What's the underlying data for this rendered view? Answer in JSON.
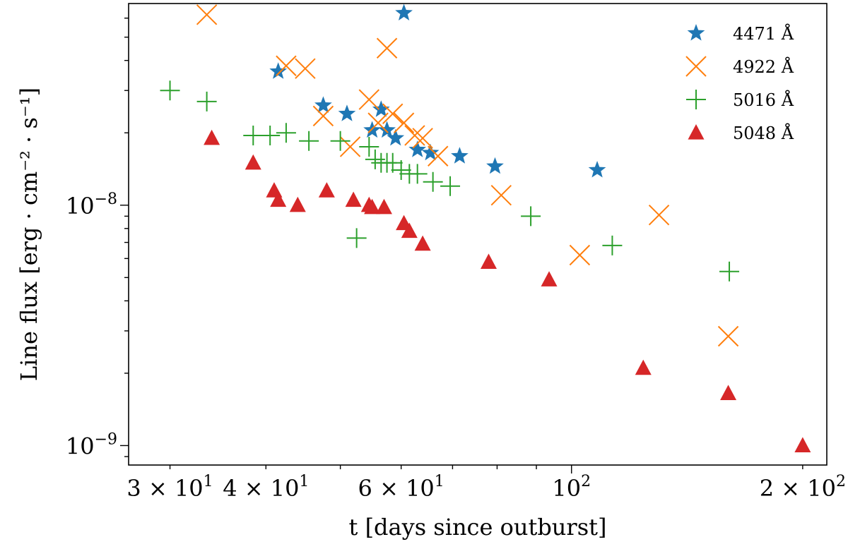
{
  "chart_data": {
    "type": "scatter",
    "xscale": "log",
    "yscale": "log",
    "xlim": [
      26.5,
      215
    ],
    "ylim": [
      8.3e-10,
      6.9e-08
    ],
    "xlabel": "t [days since outburst]",
    "ylabel": "Line flux [erg · cm⁻² · s⁻¹]",
    "legend_position": "top-right",
    "x_ticks": [
      {
        "value": 30,
        "mantissa": "3 × 10",
        "exp": "1"
      },
      {
        "value": 40,
        "mantissa": "4 × 10",
        "exp": "1"
      },
      {
        "value": 60,
        "mantissa": "6 × 10",
        "exp": "1"
      },
      {
        "value": 100,
        "mantissa": "10",
        "exp": "2"
      },
      {
        "value": 200,
        "mantissa": "2 × 10",
        "exp": "2"
      }
    ],
    "y_ticks": [
      {
        "value": 1e-09,
        "mantissa": "10",
        "exp": "−9"
      },
      {
        "value": 1e-08,
        "mantissa": "10",
        "exp": "−8"
      }
    ],
    "series": [
      {
        "name": "4471 Å",
        "marker": "star",
        "color": "#1f77b4",
        "x": [
          41.5,
          47.5,
          51.0,
          55.0,
          56.5,
          57.5,
          59.0,
          60.5,
          63.0,
          65.5,
          71.5,
          79.5,
          108.0
        ],
        "y": [
          3.6e-08,
          2.6e-08,
          2.4e-08,
          2.05e-08,
          2.5e-08,
          2.05e-08,
          1.9e-08,
          6.3e-08,
          1.7e-08,
          1.65e-08,
          1.6e-08,
          1.45e-08,
          1.4e-08
        ]
      },
      {
        "name": "4922 Å",
        "marker": "x",
        "color": "#ff7f0e",
        "x": [
          33.5,
          42.5,
          45.0,
          47.5,
          51.5,
          54.5,
          56.0,
          57.5,
          58.5,
          60.5,
          62.5,
          64.0,
          67.0,
          81.0,
          102.5,
          130.0,
          160.0
        ],
        "y": [
          6.2e-08,
          3.8e-08,
          3.7e-08,
          2.35e-08,
          1.75e-08,
          2.75e-08,
          2.2e-08,
          4.5e-08,
          2.4e-08,
          2.2e-08,
          1.95e-08,
          1.9e-08,
          1.6e-08,
          1.1e-08,
          6.2e-09,
          9.1e-09,
          2.85e-09
        ]
      },
      {
        "name": "5016 Å",
        "marker": "plus",
        "color": "#2ca02c",
        "x": [
          30.0,
          33.5,
          38.5,
          40.5,
          42.5,
          45.5,
          50.0,
          52.5,
          54.5,
          55.5,
          56.5,
          57.5,
          58.5,
          60.0,
          61.5,
          63.0,
          66.0,
          69.5,
          88.5,
          113.0,
          160.5
        ],
        "y": [
          3e-08,
          2.7e-08,
          1.95e-08,
          1.95e-08,
          2e-08,
          1.85e-08,
          1.85e-08,
          7.3e-09,
          1.75e-08,
          1.55e-08,
          1.5e-08,
          1.5e-08,
          1.5e-08,
          1.4e-08,
          1.35e-08,
          1.35e-08,
          1.25e-08,
          1.2e-08,
          9e-09,
          6.8e-09,
          5.3e-09
        ]
      },
      {
        "name": "5048 Å",
        "marker": "triangle",
        "color": "#d62728",
        "x": [
          34.0,
          38.5,
          41.0,
          41.5,
          44.0,
          48.0,
          52.0,
          54.5,
          55.0,
          57.0,
          60.5,
          61.5,
          64.0,
          78.0,
          93.5,
          124.0,
          160.0,
          200.0
        ],
        "y": [
          1.9e-08,
          1.5e-08,
          1.15e-08,
          1.05e-08,
          1e-08,
          1.15e-08,
          1.05e-08,
          1e-08,
          9.8e-09,
          9.8e-09,
          8.4e-09,
          7.8e-09,
          6.9e-09,
          5.8e-09,
          4.9e-09,
          2.1e-09,
          1.65e-09,
          1e-09
        ]
      }
    ]
  }
}
